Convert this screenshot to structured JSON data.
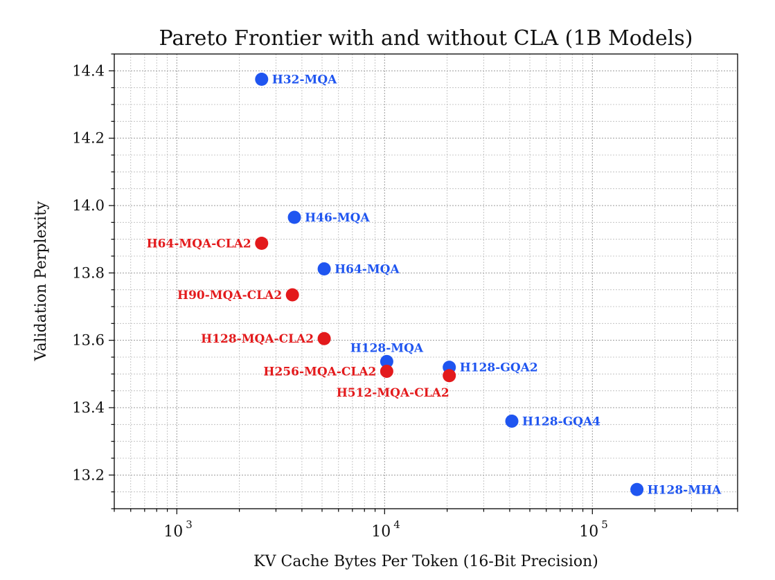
{
  "chart_data": {
    "type": "scatter",
    "title": "Pareto Frontier with and without CLA (1B Models)",
    "xlabel": "KV Cache Bytes Per Token (16-Bit Precision)",
    "ylabel": "Validation Perplexity",
    "x_scale": "log",
    "xlim": [
      500,
      500000
    ],
    "ylim": [
      13.1,
      14.45
    ],
    "grid": true,
    "x_ticks": [
      {
        "base": "10",
        "exp": "3",
        "value": 1000
      },
      {
        "base": "10",
        "exp": "4",
        "value": 10000
      },
      {
        "base": "10",
        "exp": "5",
        "value": 100000
      }
    ],
    "y_ticks": [
      "13.2",
      "13.4",
      "13.6",
      "13.8",
      "14.0",
      "14.2",
      "14.4"
    ],
    "colors": {
      "baseline": "#1f55f0",
      "cla": "#e31a1c"
    },
    "points": [
      {
        "label": "H32-MQA",
        "x": 2560,
        "y": 14.375,
        "group": "baseline",
        "label_pos": "right"
      },
      {
        "label": "H46-MQA",
        "x": 3680,
        "y": 13.965,
        "group": "baseline",
        "label_pos": "right"
      },
      {
        "label": "H64-MQA",
        "x": 5120,
        "y": 13.812,
        "group": "baseline",
        "label_pos": "right"
      },
      {
        "label": "H128-MQA",
        "x": 10240,
        "y": 13.537,
        "group": "baseline",
        "label_pos": "above"
      },
      {
        "label": "H128-GQA2",
        "x": 20480,
        "y": 13.52,
        "group": "baseline",
        "label_pos": "right"
      },
      {
        "label": "H128-GQA4",
        "x": 40960,
        "y": 13.36,
        "group": "baseline",
        "label_pos": "right"
      },
      {
        "label": "H128-MHA",
        "x": 163840,
        "y": 13.157,
        "group": "baseline",
        "label_pos": "right"
      },
      {
        "label": "H64-MQA-CLA2",
        "x": 2560,
        "y": 13.888,
        "group": "cla",
        "label_pos": "left"
      },
      {
        "label": "H90-MQA-CLA2",
        "x": 3600,
        "y": 13.735,
        "group": "cla",
        "label_pos": "left"
      },
      {
        "label": "H128-MQA-CLA2",
        "x": 5120,
        "y": 13.605,
        "group": "cla",
        "label_pos": "left"
      },
      {
        "label": "H256-MQA-CLA2",
        "x": 10240,
        "y": 13.508,
        "group": "cla",
        "label_pos": "left"
      },
      {
        "label": "H512-MQA-CLA2",
        "x": 20480,
        "y": 13.495,
        "group": "cla",
        "label_pos": "below-left"
      }
    ]
  }
}
